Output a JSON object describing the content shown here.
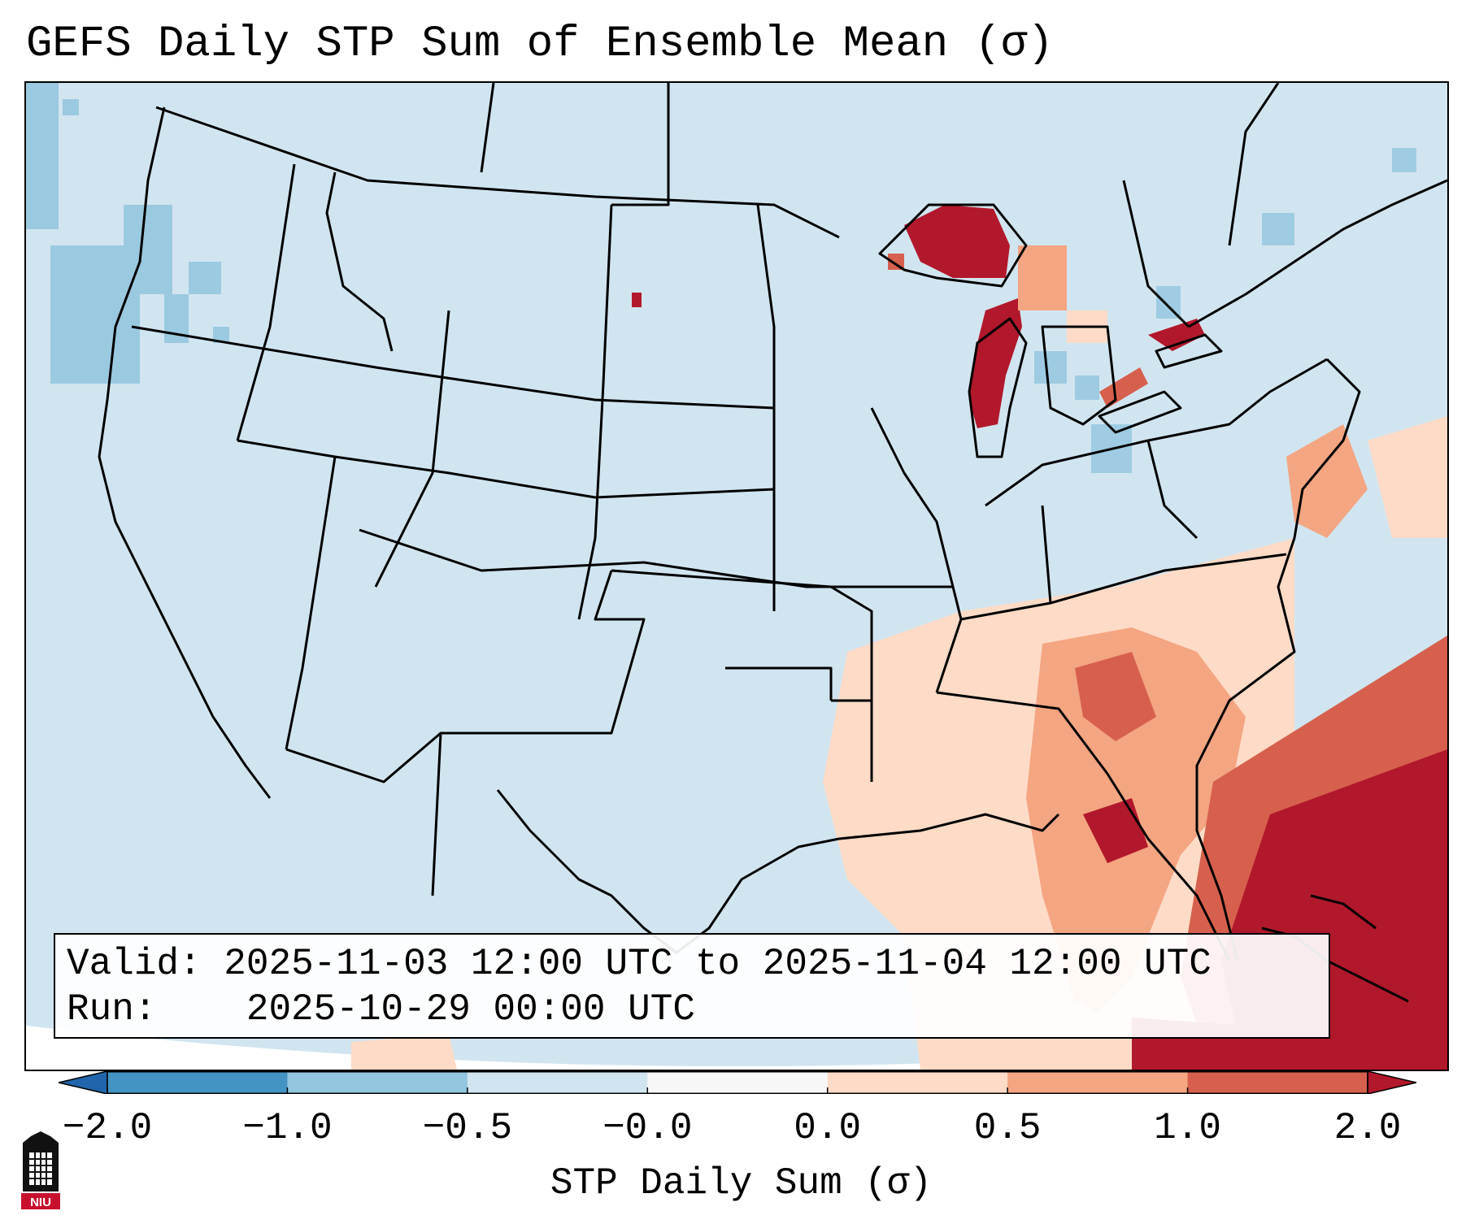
{
  "title": "GEFS Daily STP Sum of Ensemble Mean (σ)",
  "info": {
    "valid_label": "Valid:",
    "valid_text": "2025-11-03 12:00 UTC to 2025-11-04 12:00 UTC",
    "run_label": "Run:",
    "run_text": "2025-10-29 00:00 UTC"
  },
  "colorbar": {
    "label": "STP Daily Sum (σ)",
    "ticks": [
      "−2.0",
      "−1.0",
      "−0.5",
      "−0.0",
      "0.0",
      "0.5",
      "1.0",
      "2.0"
    ],
    "bins": [
      {
        "range": "< -2.0",
        "color": "#2166ac"
      },
      {
        "range": "-2.0 to -1.0",
        "color": "#4393c3"
      },
      {
        "range": "-1.0 to -0.5",
        "color": "#92c5de"
      },
      {
        "range": "-0.5 to -0.0",
        "color": "#d1e5f0"
      },
      {
        "range": "-0.0 to 0.0",
        "color": "#f7f7f7"
      },
      {
        "range": "0.0 to 0.5",
        "color": "#fddbc7"
      },
      {
        "range": "0.5 to 1.0",
        "color": "#f4a582"
      },
      {
        "range": "1.0 to 2.0",
        "color": "#d6604d"
      },
      {
        "range": "> 2.0",
        "color": "#b2182b"
      }
    ],
    "extend": "both"
  },
  "map": {
    "region": "Contiguous United States",
    "background_color": "#d1e5f0",
    "feature_lines": "state and country borders, coastlines",
    "highlight_areas": [
      "Lake Superior",
      "Lake Michigan",
      "Lake Ontario",
      "Lake Erie",
      "Southeast US and Gulf of Mexico",
      "Western Atlantic near Bahamas"
    ]
  },
  "logo": {
    "text": "NIU",
    "color": "#c8102e"
  }
}
